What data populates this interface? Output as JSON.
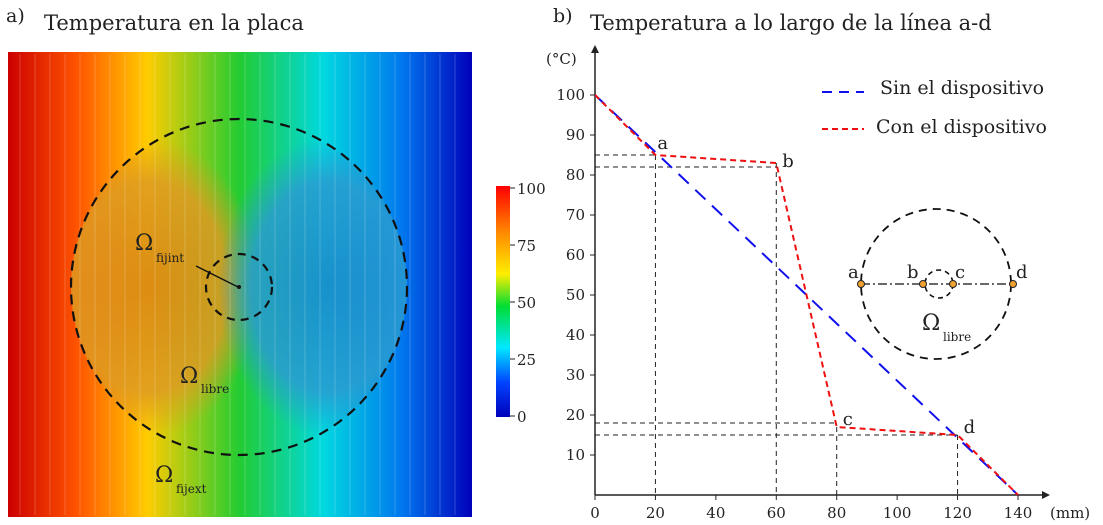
{
  "panel_a": {
    "tag": "a)",
    "title": "Temperatura en la placa",
    "labels": [
      {
        "main": "Ω",
        "sub": "fijint"
      },
      {
        "main": "Ω",
        "sub": "libre"
      },
      {
        "main": "Ω",
        "sub": "fijext"
      }
    ],
    "colorbar": {
      "ticks": [
        "100",
        "75",
        "50",
        "25",
        "0"
      ],
      "colors": [
        "#ff0000",
        "#ff8800",
        "#ffee00",
        "#00dd33",
        "#00e8ff",
        "#0044ff",
        "#0000bb"
      ]
    }
  },
  "panel_b": {
    "tag": "b)",
    "title": "Temperatura a lo largo de la línea a-d",
    "legend": [
      {
        "label": "Sin el dispositivo",
        "color": "#1010ee"
      },
      {
        "label": "Con el dispositivo",
        "color": "#ee1010"
      }
    ],
    "inset": {
      "points": [
        "a",
        "b",
        "c",
        "d"
      ],
      "label": {
        "main": "Ω",
        "sub": "libre"
      }
    }
  },
  "chart_data": {
    "type": "line",
    "xlabel": "(mm)",
    "ylabel": "(°C)",
    "xlim": [
      0,
      140
    ],
    "ylim": [
      0,
      100
    ],
    "xticks": [
      0,
      20,
      40,
      60,
      80,
      100,
      120,
      140
    ],
    "yticks": [
      10,
      20,
      30,
      40,
      50,
      60,
      70,
      80,
      90,
      100
    ],
    "series": [
      {
        "name": "Sin el dispositivo",
        "color": "#1010ee",
        "x": [
          0,
          140
        ],
        "y": [
          100,
          0
        ]
      },
      {
        "name": "Con el dispositivo",
        "color": "#ee1010",
        "x": [
          0,
          20,
          60,
          80,
          120,
          140
        ],
        "y": [
          100,
          85,
          83,
          17,
          15,
          0
        ]
      }
    ],
    "annotations": [
      {
        "label": "a",
        "x": 20,
        "y": 85
      },
      {
        "label": "b",
        "x": 60,
        "y": 83
      },
      {
        "label": "c",
        "x": 80,
        "y": 17
      },
      {
        "label": "d",
        "x": 120,
        "y": 15
      }
    ],
    "reference_y": [
      85,
      82,
      18,
      15
    ],
    "grid": false,
    "legend_position": "top-right"
  }
}
